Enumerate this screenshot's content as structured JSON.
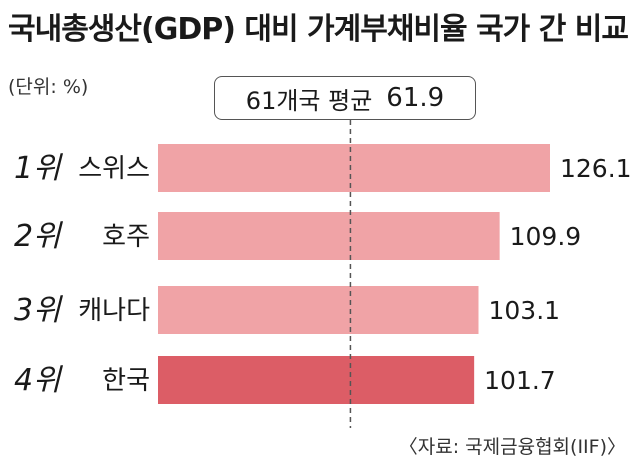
{
  "title": "국내총생산(GDP) 대비 가계부채비율 국가 간 비교",
  "unit": "(단위: %)",
  "source": "〈자료: 국제금융협회(IIF)〉",
  "average": {
    "label": "61개국 평균",
    "value": "61.9"
  },
  "colors": {
    "bar": "#f0a3a6",
    "highlight": "#dc5d66",
    "text": "#1a1a1a"
  },
  "chart_data": {
    "type": "bar",
    "orientation": "horizontal",
    "title": "국내총생산(GDP) 대비 가계부채비율 국가 간 비교",
    "categories": [
      "스위스",
      "호주",
      "캐나다",
      "한국"
    ],
    "ranks": [
      "1위",
      "2위",
      "3위",
      "4위"
    ],
    "values": [
      126.1,
      109.9,
      103.1,
      101.7
    ],
    "value_labels": [
      "126.1",
      "109.9",
      "103.1",
      "101.7"
    ],
    "reference_line": {
      "label": "61개국 평균",
      "value": 61.9
    },
    "highlight_index": 3,
    "xlim": [
      0,
      126.1
    ],
    "grid": false,
    "legend": "none"
  }
}
